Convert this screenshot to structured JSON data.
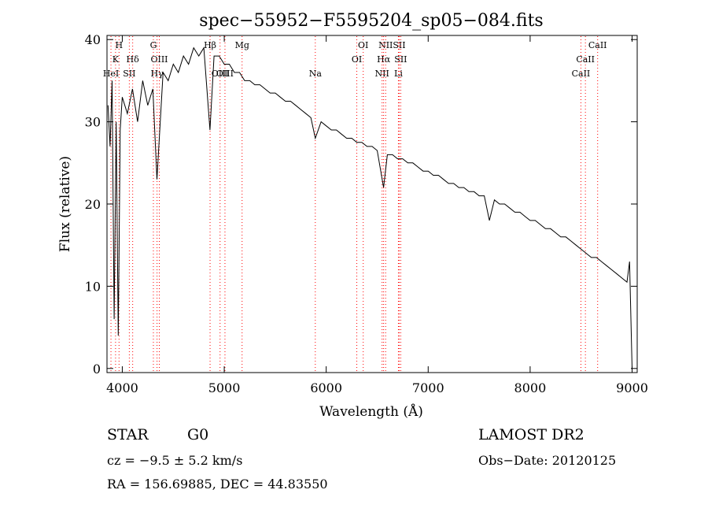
{
  "chart_data": {
    "type": "line",
    "title": "spec−55952−F5595204_sp05−084.fits",
    "xlabel": "Wavelength (Å)",
    "ylabel": "Flux (relative)",
    "xlim": [
      3850,
      9050
    ],
    "ylim": [
      -0.5,
      40.5
    ],
    "x_ticks": [
      4000,
      5000,
      6000,
      7000,
      8000,
      9000
    ],
    "y_ticks": [
      0,
      10,
      20,
      30,
      40
    ],
    "grid": false,
    "line_color": "#000000",
    "marker_color": "#ff0000",
    "series": [
      {
        "x": [
          3860,
          3880,
          3900,
          3920,
          3940,
          3960,
          3980,
          4000,
          4050,
          4100,
          4150,
          4200,
          4250,
          4300,
          4340,
          4400,
          4450,
          4500,
          4550,
          4600,
          4650,
          4700,
          4750,
          4800,
          4860,
          4900,
          4950,
          5000,
          5050,
          5100,
          5150,
          5200,
          5250,
          5300,
          5350,
          5400,
          5450,
          5500,
          5550,
          5600,
          5650,
          5700,
          5750,
          5800,
          5850,
          5893,
          5950,
          6000,
          6050,
          6100,
          6150,
          6200,
          6250,
          6300,
          6350,
          6400,
          6450,
          6500,
          6563,
          6600,
          6650,
          6700,
          6750,
          6800,
          6850,
          6900,
          6950,
          7000,
          7050,
          7100,
          7150,
          7200,
          7250,
          7300,
          7350,
          7400,
          7450,
          7500,
          7550,
          7600,
          7650,
          7700,
          7750,
          7800,
          7850,
          7900,
          7950,
          8000,
          8050,
          8100,
          8150,
          8200,
          8250,
          8300,
          8350,
          8400,
          8450,
          8500,
          8550,
          8600,
          8650,
          8700,
          8750,
          8800,
          8850,
          8900,
          8950,
          8975,
          9000
        ],
        "y": [
          32,
          27,
          35,
          6,
          30,
          4,
          29,
          33,
          31,
          34,
          30,
          35,
          32,
          34,
          23,
          36,
          35,
          37,
          36,
          38,
          37,
          39,
          38,
          39,
          29,
          38,
          38,
          37,
          37,
          36,
          36,
          35,
          35,
          34.5,
          34.5,
          34,
          33.5,
          33.5,
          33,
          32.5,
          32.5,
          32,
          31.5,
          31,
          30.5,
          28,
          30,
          29.5,
          29,
          29,
          28.5,
          28,
          28,
          27.5,
          27.5,
          27,
          27,
          26.5,
          22,
          26,
          26,
          25.5,
          25.5,
          25,
          25,
          24.5,
          24,
          24,
          23.5,
          23.5,
          23,
          22.5,
          22.5,
          22,
          22,
          21.5,
          21.5,
          21,
          21,
          18,
          20.5,
          20,
          20,
          19.5,
          19,
          19,
          18.5,
          18,
          18,
          17.5,
          17,
          17,
          16.5,
          16,
          16,
          15.5,
          15,
          14.5,
          14,
          13.5,
          13.5,
          13,
          12.5,
          12,
          11.5,
          11,
          10.5,
          13,
          0
        ]
      }
    ],
    "lines": [
      {
        "label": "H",
        "x": 3968,
        "row": 0
      },
      {
        "label": "K",
        "x": 3934,
        "row": 1
      },
      {
        "label": "Hδ",
        "x": 4102,
        "row": 1
      },
      {
        "label": "HeI",
        "x": 3889,
        "row": 2
      },
      {
        "label": "SII",
        "x": 4069,
        "row": 2
      },
      {
        "label": "G",
        "x": 4305,
        "row": 0
      },
      {
        "label": "OIII",
        "x": 4363,
        "row": 1
      },
      {
        "label": "Hγ",
        "x": 4341,
        "row": 2
      },
      {
        "label": "Hβ",
        "x": 4861,
        "row": 0
      },
      {
        "label": "OIII",
        "x": 4959,
        "row": 2
      },
      {
        "label": "OIII",
        "x": 5007,
        "row": 2
      },
      {
        "label": "Mg",
        "x": 5175,
        "row": 0
      },
      {
        "label": "Na",
        "x": 5893,
        "row": 2
      },
      {
        "label": "OI",
        "x": 6363,
        "row": 0
      },
      {
        "label": "OI",
        "x": 6300,
        "row": 1
      },
      {
        "label": "NII",
        "x": 6583,
        "row": 0
      },
      {
        "label": "SII",
        "x": 6716,
        "row": 0
      },
      {
        "label": "Hα",
        "x": 6563,
        "row": 1
      },
      {
        "label": "SII",
        "x": 6731,
        "row": 1
      },
      {
        "label": "NII",
        "x": 6548,
        "row": 2
      },
      {
        "label": "Li",
        "x": 6708,
        "row": 2
      },
      {
        "label": "CaII",
        "x": 8662,
        "row": 0
      },
      {
        "label": "CaII",
        "x": 8542,
        "row": 1
      },
      {
        "label": "CaII",
        "x": 8498,
        "row": 2
      }
    ]
  },
  "info": {
    "class": "STAR",
    "subclass": "G0",
    "survey": "LAMOST DR2",
    "cz": "cz = −9.5 ± 5.2 km/s",
    "obs_date": "Obs−Date: 20120125",
    "coords": "RA = 156.69885, DEC =  44.83550"
  }
}
